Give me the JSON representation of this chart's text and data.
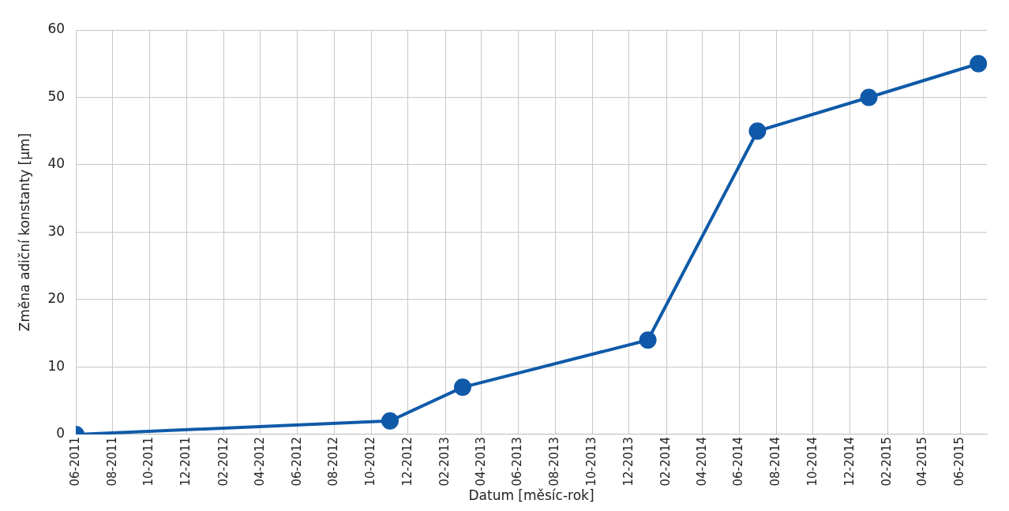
{
  "chart_data": {
    "type": "line",
    "xlabel": "Datum [měsíc-rok]",
    "ylabel": "Změna adiční konstanty [µm]",
    "x": [
      "2011-06",
      "2012-11",
      "2013-03",
      "2014-01",
      "2014-07",
      "2015-01",
      "2015-07"
    ],
    "series": [
      {
        "color": "#0f5aa8",
        "values": [
          0,
          2,
          7,
          14,
          45,
          50,
          55
        ]
      }
    ],
    "xlim": [
      "2011-06",
      "2015-07-15"
    ],
    "xticks": [
      {
        "value": "2011-06",
        "label": "06-2011"
      },
      {
        "value": "2011-08",
        "label": "08-2011"
      },
      {
        "value": "2011-10",
        "label": "10-2011"
      },
      {
        "value": "2011-12",
        "label": "12-2011"
      },
      {
        "value": "2012-02",
        "label": "02-2012"
      },
      {
        "value": "2012-04",
        "label": "04-2012"
      },
      {
        "value": "2012-06",
        "label": "06-2012"
      },
      {
        "value": "2012-08",
        "label": "08-2012"
      },
      {
        "value": "2012-10",
        "label": "10-2012"
      },
      {
        "value": "2012-12",
        "label": "12-2012"
      },
      {
        "value": "2013-02",
        "label": "02-2013"
      },
      {
        "value": "2013-04",
        "label": "04-2013"
      },
      {
        "value": "2013-06",
        "label": "06-2013"
      },
      {
        "value": "2013-08",
        "label": "08-2013"
      },
      {
        "value": "2013-10",
        "label": "10-2013"
      },
      {
        "value": "2013-12",
        "label": "12-2013"
      },
      {
        "value": "2014-02",
        "label": "02-2014"
      },
      {
        "value": "2014-04",
        "label": "04-2014"
      },
      {
        "value": "2014-06",
        "label": "06-2014"
      },
      {
        "value": "2014-08",
        "label": "08-2014"
      },
      {
        "value": "2014-10",
        "label": "10-2014"
      },
      {
        "value": "2014-12",
        "label": "12-2014"
      },
      {
        "value": "2015-02",
        "label": "02-2015"
      },
      {
        "value": "2015-04",
        "label": "04-2015"
      },
      {
        "value": "2015-06",
        "label": "06-2015"
      }
    ],
    "ylim": [
      0,
      60
    ],
    "yticks": [
      0,
      10,
      20,
      30,
      40,
      50,
      60
    ],
    "grid": true,
    "legend": false,
    "marker": "circle",
    "line_style": "solid"
  }
}
